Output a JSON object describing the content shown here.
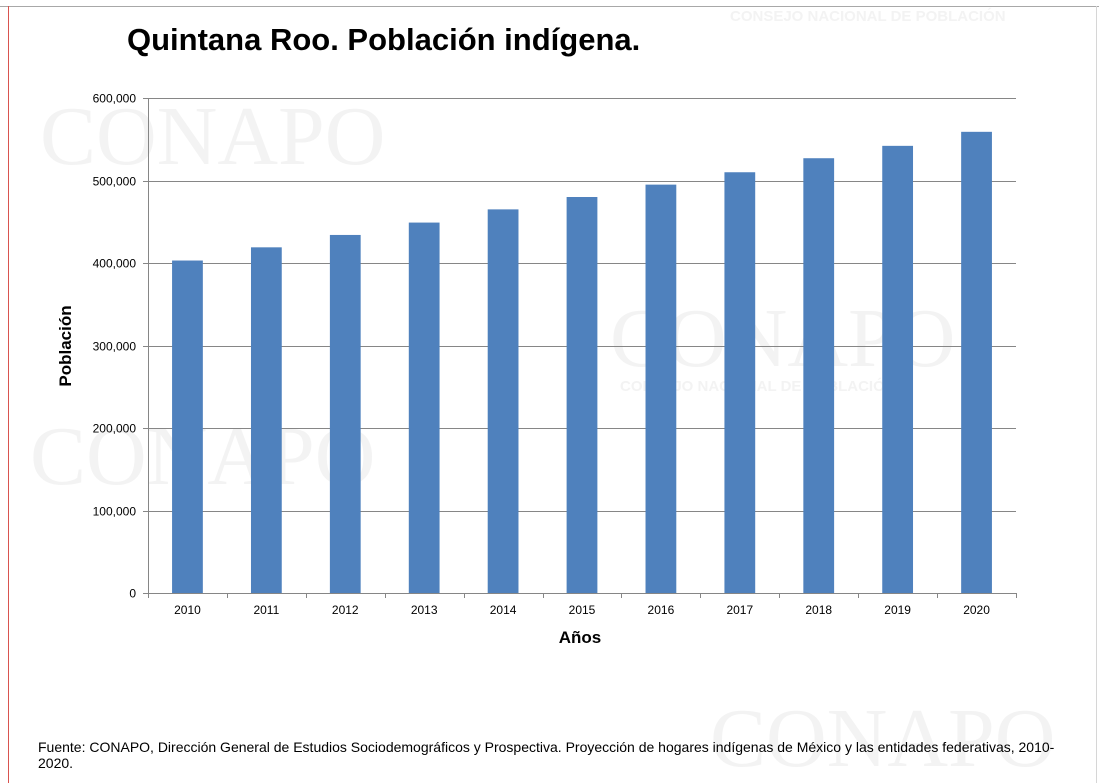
{
  "source_note": "Fuente: CONAPO, Dirección General de Estudios Sociodemográficos y Prospectiva. Proyección de hogares indígenas de México y las entidades federativas, 2010-2020.",
  "watermark": {
    "logo_text": "CONAPO",
    "caption": "CONSEJO NACIONAL DE POBLACIÓN"
  },
  "colors": {
    "bar": "#4f81bd",
    "gridline": "#868686",
    "axis": "#868686",
    "text": "#000000"
  },
  "chart_data": {
    "type": "bar",
    "title": "Quintana Roo. Población indígena.",
    "xlabel": "Años",
    "ylabel": "Población",
    "categories": [
      "2010",
      "2011",
      "2012",
      "2013",
      "2014",
      "2015",
      "2016",
      "2017",
      "2018",
      "2019",
      "2020"
    ],
    "values": [
      403000,
      419000,
      434000,
      449000,
      465000,
      480000,
      495000,
      510000,
      527000,
      542000,
      559000
    ],
    "ylim": [
      0,
      600000
    ],
    "yticks": [
      0,
      100000,
      200000,
      300000,
      400000,
      500000,
      600000
    ],
    "ytick_labels": [
      "0",
      "100,000",
      "200,000",
      "300,000",
      "400,000",
      "500,000",
      "600,000"
    ],
    "grid": true,
    "legend": "none"
  }
}
